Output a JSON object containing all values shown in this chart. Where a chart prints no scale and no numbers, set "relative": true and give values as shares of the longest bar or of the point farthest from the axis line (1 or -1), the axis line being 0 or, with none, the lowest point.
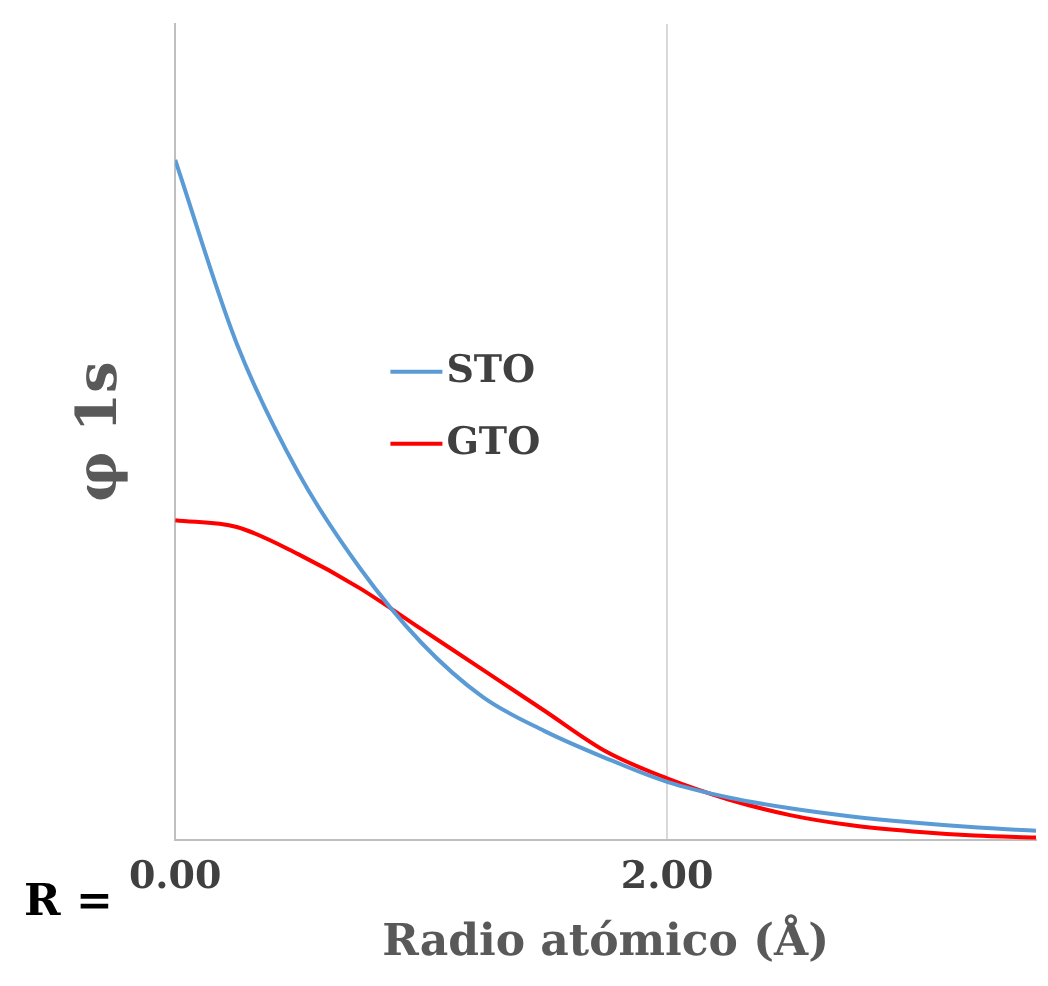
{
  "chart_data": {
    "type": "line",
    "xlabel": "Radio atómico (Å)",
    "ylabel": "φ 1s",
    "relative": true,
    "x": [
      0,
      0.25,
      0.5,
      0.75,
      1,
      1.25,
      1.5,
      1.75,
      2,
      2.25,
      2.5,
      2.75,
      3,
      3.25,
      3.5
    ],
    "series": [
      {
        "name": "STO",
        "color": "#5b9bd5",
        "values": [
          1,
          0.73,
          0.54,
          0.4,
          0.29,
          0.21,
          0.16,
          0.12,
          0.085,
          0.062,
          0.046,
          0.034,
          0.025,
          0.018,
          0.013
        ]
      },
      {
        "name": "GTO",
        "color": "#ff0000",
        "values": [
          0.47,
          0.46,
          0.42,
          0.37,
          0.31,
          0.25,
          0.19,
          0.13,
          0.09,
          0.059,
          0.036,
          0.021,
          0.012,
          0.006,
          0.003
        ]
      }
    ],
    "xlim": [
      0,
      3.5
    ],
    "xticks": [
      {
        "value": 0,
        "label": "0.00"
      },
      {
        "value": 2,
        "label": "2.00"
      }
    ],
    "grid": "x",
    "legend": "center",
    "marker": "none",
    "line_style": "solid",
    "annotations": [
      "R ="
    ]
  }
}
